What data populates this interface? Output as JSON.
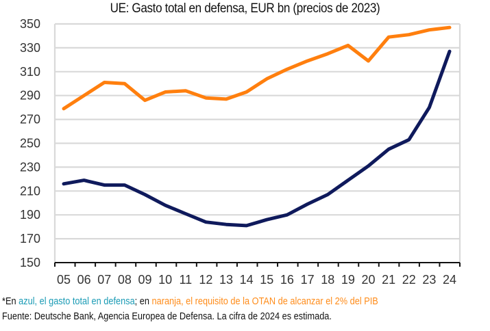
{
  "chart_data": {
    "type": "line",
    "title": "UE: Gasto total en defensa, EUR bn (precios de 2023)",
    "xlabel": "",
    "ylabel": "",
    "x": [
      "05",
      "06",
      "07",
      "08",
      "09",
      "10",
      "11",
      "12",
      "13",
      "14",
      "15",
      "16",
      "17",
      "18",
      "19",
      "20",
      "21",
      "22",
      "23",
      "24"
    ],
    "ylim": [
      150,
      350
    ],
    "yticks": [
      150,
      170,
      190,
      210,
      230,
      250,
      270,
      290,
      310,
      330,
      350
    ],
    "grid": true,
    "legend": "none",
    "series": [
      {
        "name": "Requisito OTAN 2% del PIB",
        "color": "#ff7f0e",
        "values": [
          279,
          290,
          301,
          300,
          286,
          293,
          294,
          288,
          287,
          293,
          304,
          312,
          319,
          325,
          332,
          319,
          339,
          341,
          345,
          347
        ]
      },
      {
        "name": "Gasto total en defensa",
        "color": "#0f1a5c",
        "values": [
          216,
          219,
          215,
          215,
          207,
          198,
          191,
          184,
          182,
          181,
          186,
          190,
          199,
          207,
          219,
          231,
          245,
          253,
          280,
          327
        ]
      }
    ]
  },
  "footnote": {
    "prefix": "*En ",
    "blue_text": "azul, el gasto total en defensa",
    "middle": "; en ",
    "orange_text": "naranja, el requisito de la OTAN de alcanzar el 2% del PIB",
    "blue_color": "#1a9bb5",
    "orange_color": "#ff8c1a"
  },
  "source": "Fuente: Deutsche Bank, Agencia Europea de Defensa. La cifra de 2024 es estimada."
}
